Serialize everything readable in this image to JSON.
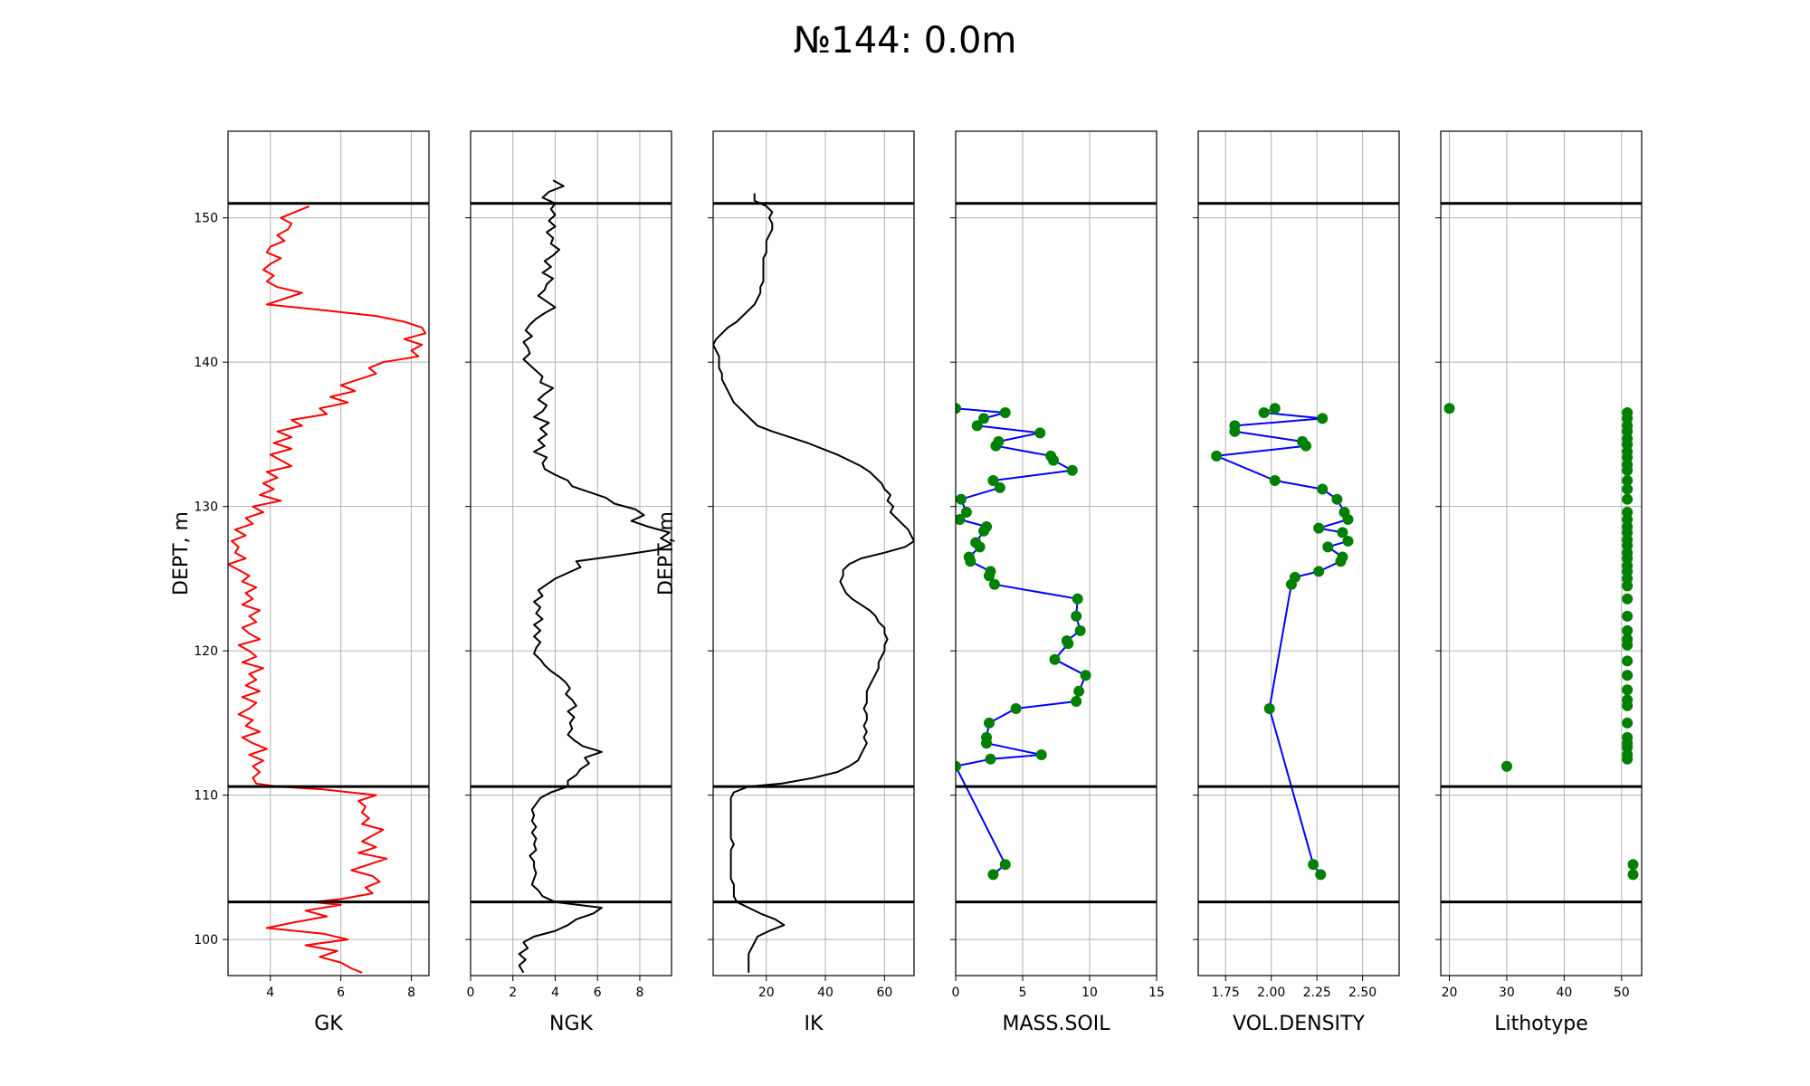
{
  "chart_data": {
    "type": "line",
    "title": "№144:  0.0m",
    "ylim": [
      97.5,
      156
    ],
    "yticks": [
      100,
      110,
      120,
      130,
      140,
      150
    ],
    "grid": true,
    "boundaries": [
      151.0,
      110.6,
      102.6
    ],
    "colors": {
      "gk": "#ff0000",
      "line": "#000000",
      "connector": "#0000ff",
      "marker": "#008000",
      "grid": "#b0b0b0"
    },
    "panels": [
      {
        "key": "gk",
        "type": "line",
        "xlabel": "GK",
        "ylabel": "DEPT, m",
        "xlim": [
          2.8,
          8.5
        ],
        "xticks": [
          4,
          6,
          8
        ],
        "color": "#ff0000",
        "depth": [
          150.8,
          150.4,
          150.0,
          149.6,
          149.2,
          148.8,
          148.4,
          148.0,
          147.6,
          147.2,
          146.8,
          146.4,
          146.0,
          145.6,
          145.2,
          144.8,
          144.4,
          144.0,
          143.6,
          143.2,
          142.8,
          142.4,
          142.0,
          141.6,
          141.2,
          140.8,
          140.4,
          140.0,
          139.6,
          139.2,
          138.8,
          138.4,
          138.0,
          137.6,
          137.2,
          136.8,
          136.4,
          136.0,
          135.6,
          135.2,
          134.8,
          134.4,
          134.0,
          133.6,
          133.2,
          132.8,
          132.4,
          132.0,
          131.6,
          131.2,
          130.8,
          130.4,
          130.0,
          129.6,
          129.2,
          128.8,
          128.4,
          128.0,
          127.6,
          127.2,
          126.8,
          126.4,
          126.0,
          125.6,
          125.2,
          124.8,
          124.4,
          124.0,
          123.6,
          123.2,
          122.8,
          122.4,
          122.0,
          121.6,
          121.2,
          120.8,
          120.4,
          120.0,
          119.6,
          119.2,
          118.8,
          118.4,
          118.0,
          117.6,
          117.2,
          116.8,
          116.4,
          116.0,
          115.6,
          115.2,
          114.8,
          114.4,
          114.0,
          113.6,
          113.2,
          112.8,
          112.4,
          112.0,
          111.6,
          111.2,
          110.8,
          110.6,
          110.4,
          110.0,
          109.6,
          109.2,
          108.8,
          108.4,
          108.0,
          107.6,
          107.2,
          106.8,
          106.4,
          106.0,
          105.6,
          105.2,
          104.8,
          104.4,
          104.0,
          103.6,
          103.2,
          102.8,
          102.6,
          102.4,
          102.0,
          101.6,
          101.2,
          100.8,
          100.4,
          100.0,
          99.6,
          99.2,
          98.8,
          98.4,
          98.0,
          97.7
        ],
        "values": [
          5.1,
          4.7,
          4.3,
          4.6,
          4.5,
          4.2,
          4.4,
          4.0,
          3.9,
          4.3,
          4.0,
          3.8,
          4.1,
          3.9,
          4.2,
          4.9,
          4.4,
          3.9,
          5.5,
          7.0,
          7.8,
          8.3,
          8.4,
          7.8,
          8.3,
          8.0,
          8.2,
          7.2,
          6.8,
          7.0,
          6.5,
          6.0,
          6.4,
          5.7,
          6.2,
          5.4,
          5.6,
          4.6,
          4.9,
          4.2,
          4.6,
          4.1,
          4.6,
          4.0,
          4.3,
          4.6,
          3.9,
          4.2,
          3.8,
          4.1,
          3.7,
          4.3,
          3.5,
          3.8,
          3.3,
          3.5,
          3.0,
          3.3,
          2.9,
          3.1,
          3.0,
          3.3,
          2.8,
          3.1,
          3.4,
          3.2,
          3.6,
          3.3,
          3.5,
          3.2,
          3.7,
          3.4,
          3.6,
          3.2,
          3.4,
          3.7,
          3.1,
          3.4,
          3.6,
          3.2,
          3.8,
          3.4,
          3.6,
          3.3,
          3.7,
          3.2,
          3.6,
          3.4,
          3.1,
          3.5,
          3.3,
          3.7,
          3.2,
          3.5,
          3.9,
          3.4,
          3.8,
          3.5,
          3.7,
          3.5,
          3.6,
          4.2,
          5.5,
          7.0,
          6.5,
          6.7,
          6.6,
          6.8,
          6.6,
          7.2,
          6.9,
          6.6,
          7.0,
          6.5,
          7.3,
          6.8,
          6.3,
          6.9,
          7.1,
          6.7,
          6.9,
          6.0,
          5.2,
          6.0,
          5.0,
          5.6,
          4.7,
          3.9,
          5.5,
          6.2,
          5.0,
          5.9,
          5.4,
          6.0,
          6.3,
          6.6
        ],
        "line": true,
        "markers": false
      },
      {
        "key": "ngk",
        "type": "line",
        "xlabel": "NGK",
        "xlim": [
          0,
          9.5
        ],
        "xticks": [
          0,
          2,
          4,
          6,
          8
        ],
        "color": "#000000",
        "depth": [
          152.6,
          152.2,
          151.8,
          151.4,
          151.0,
          150.6,
          150.2,
          149.8,
          149.4,
          149.0,
          148.6,
          148.2,
          147.8,
          147.4,
          147.0,
          146.6,
          146.2,
          145.8,
          145.4,
          145.0,
          144.6,
          144.2,
          143.8,
          143.4,
          143.0,
          142.6,
          142.2,
          141.8,
          141.4,
          141.0,
          140.6,
          140.2,
          139.8,
          139.4,
          139.0,
          138.6,
          138.2,
          137.8,
          137.4,
          137.0,
          136.6,
          136.2,
          135.8,
          135.4,
          135.0,
          134.6,
          134.2,
          133.8,
          133.4,
          133.0,
          132.6,
          132.2,
          131.8,
          131.4,
          131.0,
          130.6,
          130.2,
          129.8,
          129.4,
          129.0,
          128.6,
          128.2,
          127.8,
          127.4,
          127.0,
          126.6,
          126.2,
          125.8,
          125.4,
          125.0,
          124.6,
          124.2,
          123.8,
          123.4,
          123.0,
          122.6,
          122.2,
          121.8,
          121.4,
          121.0,
          120.6,
          120.2,
          119.8,
          119.4,
          119.0,
          118.6,
          118.2,
          117.8,
          117.4,
          117.0,
          116.6,
          116.2,
          115.8,
          115.4,
          115.0,
          114.6,
          114.2,
          113.8,
          113.4,
          113.0,
          112.6,
          112.2,
          111.8,
          111.4,
          111.0,
          110.6,
          110.2,
          109.8,
          109.4,
          109.0,
          108.6,
          108.2,
          107.8,
          107.4,
          107.0,
          106.6,
          106.2,
          105.8,
          105.4,
          105.0,
          104.6,
          104.2,
          103.8,
          103.4,
          103.0,
          102.6,
          102.2,
          101.8,
          101.4,
          101.0,
          100.6,
          100.2,
          99.8,
          99.4,
          99.0,
          98.6,
          98.2,
          97.7
        ],
        "values": [
          3.9,
          4.4,
          3.7,
          3.4,
          4.0,
          3.8,
          4.0,
          3.7,
          4.0,
          3.6,
          3.9,
          3.8,
          4.2,
          3.9,
          3.5,
          3.8,
          3.4,
          3.9,
          3.6,
          3.5,
          3.2,
          3.6,
          4.0,
          3.5,
          3.1,
          2.8,
          2.6,
          2.9,
          2.5,
          2.7,
          2.8,
          2.5,
          2.8,
          3.1,
          3.4,
          3.3,
          3.9,
          3.5,
          3.2,
          3.6,
          3.4,
          3.0,
          3.7,
          3.3,
          3.6,
          3.2,
          3.5,
          3.0,
          3.6,
          3.4,
          3.5,
          4.0,
          4.6,
          4.8,
          5.6,
          6.4,
          6.8,
          7.8,
          8.2,
          7.6,
          8.4,
          9.4,
          9.0,
          9.5,
          8.8,
          7.0,
          5.0,
          5.2,
          4.6,
          4.0,
          3.6,
          3.2,
          3.4,
          3.0,
          3.3,
          3.1,
          3.4,
          3.0,
          3.3,
          3.0,
          3.3,
          3.1,
          3.0,
          3.3,
          3.5,
          3.8,
          4.2,
          4.5,
          4.7,
          4.5,
          4.8,
          5.0,
          4.6,
          4.9,
          4.7,
          4.8,
          4.6,
          4.9,
          5.3,
          6.2,
          5.4,
          5.6,
          5.2,
          5.0,
          4.6,
          4.6,
          3.8,
          3.3,
          3.1,
          2.9,
          3.0,
          2.9,
          3.1,
          2.9,
          3.1,
          3.0,
          3.1,
          2.8,
          3.0,
          3.0,
          3.1,
          3.0,
          2.9,
          3.2,
          3.4,
          4.0,
          6.2,
          5.8,
          5.0,
          4.6,
          4.0,
          3.0,
          2.5,
          2.7,
          2.3,
          2.6,
          2.3,
          2.5
        ],
        "line": true,
        "markers": false
      },
      {
        "key": "ik",
        "type": "line",
        "xlabel": "IK",
        "ylabel": "DEPT, m",
        "xlim": [
          2,
          70
        ],
        "xticks": [
          20,
          40,
          60
        ],
        "color": "#000000",
        "depth": [
          151.7,
          151.2,
          150.8,
          150.4,
          150.0,
          149.6,
          149.2,
          148.8,
          148.4,
          148.0,
          147.6,
          147.2,
          146.8,
          146.4,
          146.0,
          145.6,
          145.2,
          144.8,
          144.4,
          144.0,
          143.6,
          143.2,
          142.8,
          142.4,
          142.0,
          141.6,
          141.2,
          140.8,
          140.4,
          140.0,
          139.6,
          139.2,
          138.8,
          138.4,
          138.0,
          137.6,
          137.2,
          136.8,
          136.4,
          136.0,
          135.6,
          135.2,
          134.8,
          134.4,
          134.0,
          133.6,
          133.2,
          132.8,
          132.4,
          132.0,
          131.6,
          131.2,
          130.8,
          130.4,
          130.0,
          129.6,
          129.2,
          128.8,
          128.4,
          128.0,
          127.6,
          127.2,
          126.8,
          126.4,
          126.0,
          125.6,
          125.2,
          124.8,
          124.4,
          124.0,
          123.6,
          123.2,
          122.8,
          122.4,
          122.0,
          121.6,
          121.2,
          120.8,
          120.4,
          120.0,
          119.6,
          119.2,
          118.8,
          118.4,
          118.0,
          117.6,
          117.2,
          116.8,
          116.4,
          116.0,
          115.6,
          115.2,
          114.8,
          114.4,
          114.0,
          113.6,
          113.2,
          112.8,
          112.4,
          112.0,
          111.6,
          111.2,
          110.8,
          110.6,
          110.2,
          109.8,
          109.4,
          109.0,
          108.6,
          108.2,
          107.8,
          107.4,
          107.0,
          106.6,
          106.2,
          105.8,
          105.4,
          105.0,
          104.6,
          104.2,
          103.8,
          103.4,
          103.0,
          102.6,
          102.2,
          101.8,
          101.4,
          101.0,
          100.6,
          100.2,
          99.8,
          99.4,
          99.0,
          98.6,
          98.2,
          97.7
        ],
        "values": [
          16,
          16,
          20,
          22,
          21,
          22,
          22,
          21,
          20,
          20,
          20,
          19,
          19,
          19,
          19,
          19,
          18,
          18,
          17,
          16,
          14,
          12,
          10,
          7,
          5,
          3,
          2,
          3,
          4,
          4,
          4,
          5,
          5,
          6,
          7,
          8,
          9,
          11,
          13,
          15,
          17,
          22,
          28,
          34,
          39,
          44,
          48,
          52,
          55,
          57,
          59,
          60,
          62,
          61,
          63,
          62,
          64,
          66,
          68,
          69,
          70,
          67,
          60,
          52,
          48,
          46,
          46,
          45,
          46,
          47,
          49,
          52,
          55,
          57,
          58,
          60,
          60,
          61,
          60,
          60,
          59,
          58,
          58,
          57,
          56,
          55,
          54,
          54,
          54,
          53,
          54,
          54,
          53,
          54,
          53,
          54,
          53,
          52,
          51,
          48,
          44,
          36,
          25,
          14,
          9,
          8,
          8,
          8,
          8,
          8,
          8,
          8,
          8,
          9,
          8,
          8,
          8,
          8,
          8,
          8,
          9,
          9,
          9,
          10,
          14,
          18,
          23,
          26,
          21,
          17,
          16,
          15,
          14,
          14,
          14,
          14
        ],
        "line": true,
        "markers": false
      },
      {
        "key": "mass_soil",
        "type": "line",
        "xlabel": "MASS.SOIL",
        "xlim": [
          0,
          15
        ],
        "xticks": [
          0,
          5,
          10,
          15
        ],
        "color": "#0000ff",
        "marker_color": "#008000",
        "depth": [
          136.8,
          136.5,
          136.1,
          135.6,
          135.1,
          134.5,
          134.2,
          133.5,
          133.2,
          132.5,
          131.8,
          131.3,
          130.5,
          129.6,
          129.1,
          128.6,
          128.3,
          127.5,
          127.2,
          126.5,
          126.2,
          125.5,
          125.2,
          124.6,
          123.6,
          122.4,
          121.4,
          120.7,
          120.5,
          119.4,
          118.3,
          117.2,
          116.5,
          116.0,
          115.0,
          114.0,
          113.6,
          112.8,
          112.5,
          112.0,
          105.2,
          104.5
        ],
        "values": [
          0.0,
          3.7,
          2.1,
          1.6,
          6.3,
          3.2,
          3.0,
          7.1,
          7.3,
          8.7,
          2.8,
          3.3,
          0.4,
          0.8,
          0.3,
          2.3,
          2.1,
          1.5,
          1.8,
          1.0,
          1.1,
          2.6,
          2.5,
          2.9,
          9.1,
          9.0,
          9.3,
          8.3,
          8.4,
          7.4,
          9.7,
          9.2,
          9.0,
          4.5,
          2.5,
          2.3,
          2.3,
          6.4,
          2.6,
          0.0,
          3.7,
          2.8
        ],
        "line": true,
        "markers": true
      },
      {
        "key": "vol_density",
        "type": "line",
        "xlabel": "VOL.DENSITY",
        "xlim": [
          1.6,
          2.7
        ],
        "xticks": [
          1.75,
          2.0,
          2.25,
          2.5
        ],
        "tick_labels": [
          "1.75",
          "2.00",
          "2.25",
          "2.50"
        ],
        "color": "#0000ff",
        "marker_color": "#008000",
        "depth": [
          136.8,
          136.5,
          136.1,
          135.6,
          135.2,
          134.5,
          134.2,
          133.5,
          131.8,
          131.2,
          130.5,
          129.6,
          129.1,
          128.5,
          128.2,
          127.6,
          127.2,
          126.5,
          126.2,
          125.5,
          125.1,
          124.6,
          116.0,
          105.2,
          104.5
        ],
        "values": [
          2.02,
          1.96,
          2.28,
          1.8,
          1.8,
          2.17,
          2.19,
          1.7,
          2.02,
          2.28,
          2.36,
          2.4,
          2.42,
          2.26,
          2.39,
          2.42,
          2.31,
          2.39,
          2.38,
          2.26,
          2.13,
          2.11,
          1.99,
          2.23,
          2.27
        ],
        "line": true,
        "markers": true
      },
      {
        "key": "lithotype",
        "type": "scatter",
        "xlabel": "Lithotype",
        "xlim": [
          18.5,
          53.5
        ],
        "xticks": [
          20,
          30,
          40,
          50
        ],
        "marker_color": "#008000",
        "depth": [
          136.8,
          136.5,
          136.1,
          135.6,
          135.2,
          134.7,
          134.3,
          133.8,
          133.4,
          132.9,
          132.5,
          131.8,
          131.2,
          130.5,
          129.6,
          129.1,
          128.6,
          128.2,
          127.7,
          127.3,
          126.8,
          126.4,
          125.9,
          125.5,
          125.0,
          124.5,
          123.6,
          122.4,
          121.4,
          120.8,
          120.4,
          119.3,
          118.3,
          117.3,
          116.6,
          116.2,
          115.0,
          114.0,
          113.6,
          113.3,
          112.8,
          112.5,
          112.0,
          105.2,
          104.5
        ],
        "values": [
          20,
          51,
          51,
          51,
          51,
          51,
          51,
          51,
          51,
          51,
          51,
          51,
          51,
          51,
          51,
          51,
          51,
          51,
          51,
          51,
          51,
          51,
          51,
          51,
          51,
          51,
          51,
          51,
          51,
          51,
          51,
          51,
          51,
          51,
          51,
          51,
          51,
          51,
          51,
          51,
          51,
          51,
          30,
          52,
          52
        ],
        "line": false,
        "markers": true
      }
    ]
  }
}
